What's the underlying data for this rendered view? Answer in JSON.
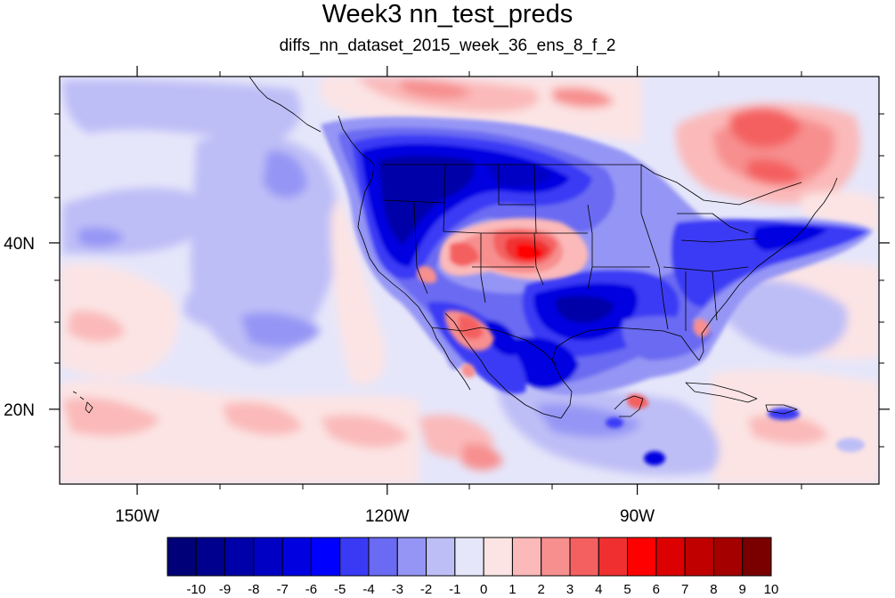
{
  "figure": {
    "title": "Week3 nn_test_preds",
    "subtitle": "diffs_nn_dataset_2015_week_36_ens_8_f_2"
  },
  "axes": {
    "x_ticks": [
      {
        "lon": -150,
        "label": "150W"
      },
      {
        "lon": -120,
        "label": "120W"
      },
      {
        "lon": -90,
        "label": "90W"
      }
    ],
    "y_ticks": [
      {
        "lat": 40,
        "label": "40N"
      },
      {
        "lat": 20,
        "label": "20N"
      }
    ],
    "lon_range": [
      -159.3,
      -61.0
    ],
    "lat_range": [
      11.0,
      60.0
    ]
  },
  "colorbar": {
    "labels": [
      "-10",
      "-9",
      "-8",
      "-7",
      "-6",
      "-5",
      "-4",
      "-3",
      "-2",
      "-1",
      "0",
      "1",
      "2",
      "3",
      "4",
      "5",
      "6",
      "7",
      "8",
      "9",
      "10"
    ],
    "colors": [
      "#000078",
      "#00008f",
      "#0000a8",
      "#0000c4",
      "#0000e0",
      "#0000ff",
      "#3a3af5",
      "#6a6af2",
      "#9595f5",
      "#bebef7",
      "#e6e6fa",
      "#fce4e4",
      "#fbb9b9",
      "#f78f8f",
      "#f46060",
      "#f03030",
      "#ff0000",
      "#dc0000",
      "#c00000",
      "#a40000",
      "#7a0000"
    ]
  },
  "colors": {
    "background_field": "#e6e6fa",
    "frame": "#000000",
    "coastline": "#000000"
  }
}
